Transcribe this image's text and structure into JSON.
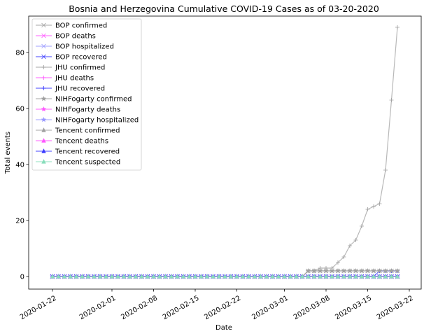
{
  "chart_data": {
    "type": "line",
    "title": "Bosnia and Herzegovina Cumulative COVID-19 Cases as of 03-20-2020",
    "xlabel": "Date",
    "ylabel": "Total events",
    "x_range": [
      "2020-01-18",
      "2020-03-24"
    ],
    "ylim": [
      -4.5,
      93
    ],
    "x_ticks": [
      {
        "date": "2020-01-22",
        "label": "2020-01-22"
      },
      {
        "date": "2020-02-01",
        "label": "2020-02-01"
      },
      {
        "date": "2020-02-08",
        "label": "2020-02-08"
      },
      {
        "date": "2020-02-15",
        "label": "2020-02-15"
      },
      {
        "date": "2020-02-22",
        "label": "2020-02-22"
      },
      {
        "date": "2020-03-01",
        "label": "2020-03-01"
      },
      {
        "date": "2020-03-08",
        "label": "2020-03-08"
      },
      {
        "date": "2020-03-15",
        "label": "2020-03-15"
      },
      {
        "date": "2020-03-22",
        "label": "2020-03-22"
      }
    ],
    "y_ticks": [
      0,
      20,
      40,
      60,
      80
    ],
    "grid": false,
    "legend_position": "top-left",
    "series": [
      {
        "name": "BOP confirmed",
        "color": "#a0a0a0",
        "marker": "x",
        "start": "2020-01-22",
        "end": "2020-03-20",
        "points": [
          [
            "2020-03-04",
            0
          ],
          [
            "2020-03-05",
            2
          ],
          [
            "2020-03-20",
            2
          ]
        ]
      },
      {
        "name": "BOP deaths",
        "color": "#ff55ff",
        "marker": "x",
        "start": "2020-01-22",
        "end": "2020-03-20",
        "points": []
      },
      {
        "name": "BOP hospitalized",
        "color": "#9999ff",
        "marker": "x",
        "start": "2020-01-22",
        "end": "2020-03-20",
        "points": []
      },
      {
        "name": "BOP recovered",
        "color": "#3a3aff",
        "marker": "x",
        "start": "2020-01-22",
        "end": "2020-03-20",
        "points": []
      },
      {
        "name": "JHU confirmed",
        "color": "#a0a0a0",
        "marker": "+",
        "start": "2020-01-22",
        "end": "2020-03-20",
        "points": [
          [
            "2020-03-04",
            0
          ],
          [
            "2020-03-05",
            2
          ],
          [
            "2020-03-06",
            2
          ],
          [
            "2020-03-07",
            3
          ],
          [
            "2020-03-08",
            3
          ],
          [
            "2020-03-09",
            3
          ],
          [
            "2020-03-10",
            5
          ],
          [
            "2020-03-11",
            7
          ],
          [
            "2020-03-12",
            11
          ],
          [
            "2020-03-13",
            13
          ],
          [
            "2020-03-14",
            18
          ],
          [
            "2020-03-15",
            24
          ],
          [
            "2020-03-16",
            25
          ],
          [
            "2020-03-17",
            26
          ],
          [
            "2020-03-18",
            38
          ],
          [
            "2020-03-19",
            63
          ],
          [
            "2020-03-20",
            89
          ]
        ]
      },
      {
        "name": "JHU deaths",
        "color": "#ff55ff",
        "marker": "+",
        "start": "2020-01-22",
        "end": "2020-03-20",
        "points": []
      },
      {
        "name": "JHU recovered",
        "color": "#3a3aff",
        "marker": "+",
        "start": "2020-01-22",
        "end": "2020-03-20",
        "points": [
          [
            "2020-03-16",
            0
          ],
          [
            "2020-03-17",
            2
          ],
          [
            "2020-03-20",
            2
          ]
        ]
      },
      {
        "name": "NIHFogarty confirmed",
        "color": "#a0a0a0",
        "marker": "*",
        "start": "2020-01-22",
        "end": "2020-03-20",
        "points": [
          [
            "2020-03-04",
            0
          ],
          [
            "2020-03-05",
            2
          ],
          [
            "2020-03-20",
            2
          ]
        ]
      },
      {
        "name": "NIHFogarty deaths",
        "color": "#ff55ff",
        "marker": "*",
        "start": "2020-01-22",
        "end": "2020-03-20",
        "points": []
      },
      {
        "name": "NIHFogarty hospitalized",
        "color": "#9999ff",
        "marker": "*",
        "start": "2020-01-22",
        "end": "2020-03-20",
        "points": []
      },
      {
        "name": "Tencent confirmed",
        "color": "#a0a0a0",
        "marker": "^",
        "start": "2020-01-22",
        "end": "2020-03-20",
        "points": []
      },
      {
        "name": "Tencent deaths",
        "color": "#ff55ff",
        "marker": "^",
        "start": "2020-01-22",
        "end": "2020-03-20",
        "points": []
      },
      {
        "name": "Tencent recovered",
        "color": "#3a3aff",
        "marker": "^",
        "start": "2020-01-22",
        "end": "2020-03-20",
        "points": []
      },
      {
        "name": "Tencent suspected",
        "color": "#88ddbb",
        "marker": "^",
        "start": "2020-01-22",
        "end": "2020-03-20",
        "points": []
      }
    ]
  }
}
